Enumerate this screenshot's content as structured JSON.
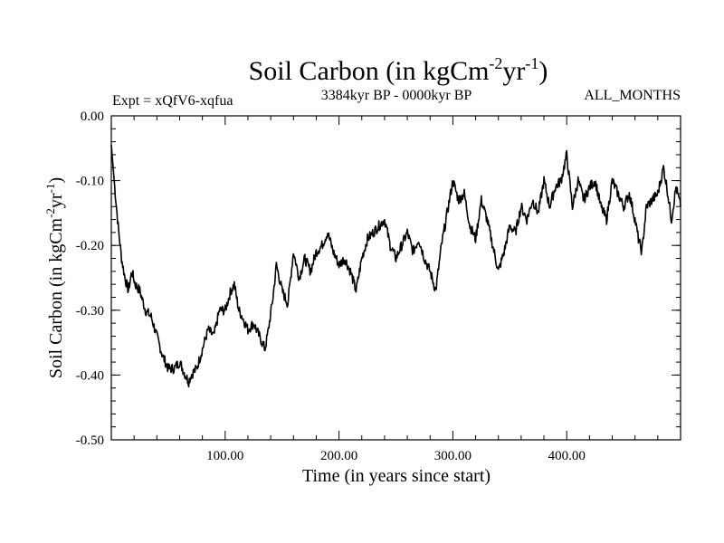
{
  "chart_data": {
    "type": "line",
    "title": "Soil Carbon (in kgCm",
    "title_sup1": "-2",
    "title_mid": "yr",
    "title_sup2": "-1",
    "title_end": ")",
    "subtitle_left": "Expt = xQfV6-xqfua",
    "subtitle_center": "3384kyr BP - 0000kyr BP",
    "subtitle_right": "ALL_MONTHS",
    "xlabel": "Time (in years since start)",
    "ylabel": "Soil Carbon (in kgCm",
    "ylabel_sup1": "-2",
    "ylabel_mid": "yr",
    "ylabel_sup2": "-1",
    "ylabel_end": ")",
    "xlim": [
      0,
      500
    ],
    "ylim": [
      -0.5,
      0.0
    ],
    "x_ticks": [
      100,
      200,
      300,
      400
    ],
    "x_tick_labels": [
      "100.00",
      "200.00",
      "300.00",
      "400.00"
    ],
    "y_ticks": [
      0.0,
      -0.1,
      -0.2,
      -0.3,
      -0.4,
      -0.5
    ],
    "y_tick_labels": [
      "0.00",
      "-0.10",
      "-0.20",
      "-0.30",
      "-0.40",
      "-0.50"
    ],
    "series": [
      {
        "name": "Soil Carbon",
        "color": "#000000",
        "x": [
          0,
          3,
          6,
          9,
          12,
          15,
          18,
          21,
          25,
          30,
          35,
          40,
          45,
          50,
          55,
          60,
          65,
          68,
          70,
          75,
          80,
          85,
          90,
          95,
          100,
          105,
          108,
          112,
          115,
          120,
          125,
          130,
          135,
          138,
          142,
          145,
          150,
          155,
          160,
          165,
          170,
          175,
          180,
          185,
          190,
          195,
          200,
          205,
          210,
          215,
          220,
          225,
          230,
          235,
          240,
          245,
          250,
          255,
          260,
          265,
          270,
          275,
          280,
          285,
          290,
          295,
          300,
          305,
          310,
          315,
          320,
          325,
          330,
          335,
          340,
          345,
          350,
          355,
          360,
          365,
          370,
          375,
          380,
          385,
          390,
          395,
          400,
          405,
          410,
          415,
          420,
          425,
          430,
          435,
          440,
          445,
          450,
          455,
          460,
          463,
          466,
          470,
          475,
          480,
          485,
          488,
          492,
          496,
          500
        ],
        "values": [
          -0.045,
          -0.11,
          -0.17,
          -0.22,
          -0.25,
          -0.27,
          -0.24,
          -0.26,
          -0.27,
          -0.3,
          -0.31,
          -0.34,
          -0.37,
          -0.39,
          -0.39,
          -0.38,
          -0.4,
          -0.41,
          -0.4,
          -0.39,
          -0.36,
          -0.33,
          -0.34,
          -0.3,
          -0.3,
          -0.27,
          -0.26,
          -0.3,
          -0.31,
          -0.33,
          -0.32,
          -0.34,
          -0.36,
          -0.33,
          -0.28,
          -0.23,
          -0.27,
          -0.29,
          -0.21,
          -0.25,
          -0.22,
          -0.24,
          -0.21,
          -0.2,
          -0.18,
          -0.21,
          -0.23,
          -0.22,
          -0.24,
          -0.27,
          -0.22,
          -0.19,
          -0.18,
          -0.17,
          -0.16,
          -0.2,
          -0.22,
          -0.2,
          -0.18,
          -0.21,
          -0.19,
          -0.22,
          -0.24,
          -0.27,
          -0.2,
          -0.15,
          -0.1,
          -0.13,
          -0.12,
          -0.17,
          -0.19,
          -0.13,
          -0.16,
          -0.2,
          -0.24,
          -0.21,
          -0.17,
          -0.18,
          -0.14,
          -0.16,
          -0.13,
          -0.15,
          -0.1,
          -0.14,
          -0.11,
          -0.1,
          -0.06,
          -0.14,
          -0.1,
          -0.13,
          -0.11,
          -0.1,
          -0.14,
          -0.16,
          -0.1,
          -0.12,
          -0.14,
          -0.12,
          -0.16,
          -0.19,
          -0.21,
          -0.14,
          -0.13,
          -0.12,
          -0.08,
          -0.11,
          -0.16,
          -0.11,
          -0.14
        ]
      }
    ]
  }
}
